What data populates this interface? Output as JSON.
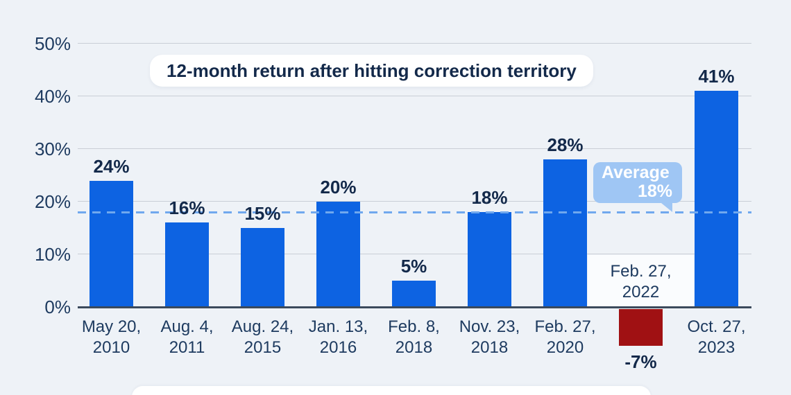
{
  "chart_data": {
    "type": "bar",
    "title": "12-month return after hitting correction territory",
    "categories": [
      "May 20, 2010",
      "Aug. 4, 2011",
      "Aug. 24, 2015",
      "Jan. 13, 2016",
      "Feb. 8, 2018",
      "Nov. 23, 2018",
      "Feb. 27, 2020",
      "Feb. 27, 2022",
      "Oct. 27, 2023"
    ],
    "category_lines": [
      [
        "May 20,",
        "2010"
      ],
      [
        "Aug. 4,",
        "2011"
      ],
      [
        "Aug. 24,",
        "2015"
      ],
      [
        "Jan. 13,",
        "2016"
      ],
      [
        "Feb. 8,",
        "2018"
      ],
      [
        "Nov. 23,",
        "2018"
      ],
      [
        "Feb. 27,",
        "2020"
      ],
      [
        "Feb. 27,",
        "2022"
      ],
      [
        "Oct. 27,",
        "2023"
      ]
    ],
    "values": [
      24,
      16,
      15,
      20,
      5,
      18,
      28,
      -7,
      41
    ],
    "value_labels": [
      "24%",
      "16%",
      "15%",
      "20%",
      "5%",
      "18%",
      "28%",
      "-7%",
      "41%"
    ],
    "average": {
      "value": 18,
      "label_line1": "Average",
      "label_line2": "18%"
    },
    "y_axis": {
      "ticks": [
        0,
        10,
        20,
        30,
        40,
        50
      ],
      "tick_labels": [
        "0%",
        "10%",
        "20%",
        "30%",
        "40%",
        "50%"
      ],
      "shown_range": [
        0,
        50
      ]
    },
    "xlabel": "",
    "ylabel": "",
    "grid": "horizontal",
    "legend": "none",
    "colors": {
      "background": "#eef2f7",
      "bar_positive": "#0d63e2",
      "bar_negative": "#a01113",
      "average_line": "#70a8ee",
      "average_bubble": "#9fc6f4",
      "text_dark": "#13294a",
      "axis_text": "#1d3a5f",
      "gridline": "#c9ced6",
      "baseline": "#3b4a5c"
    }
  }
}
